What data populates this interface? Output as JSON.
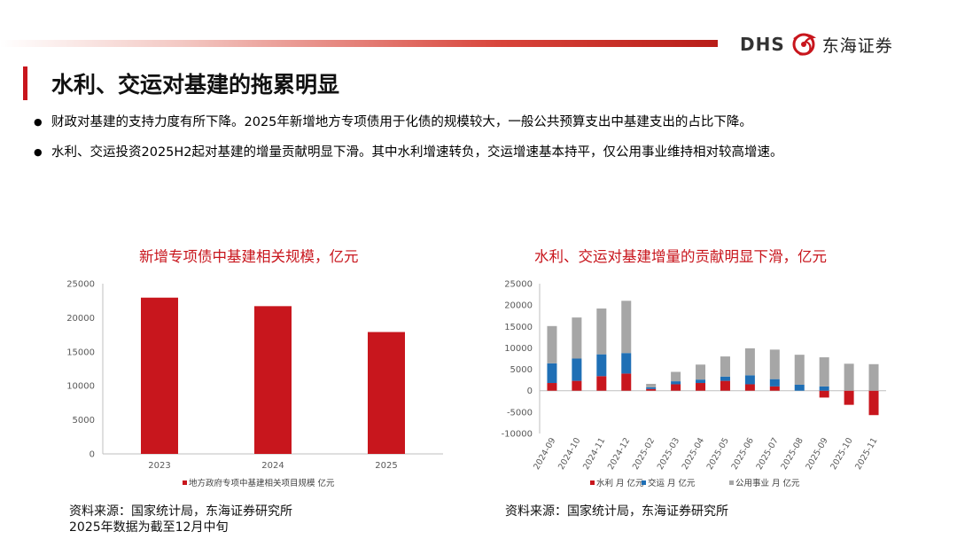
{
  "brand": {
    "logo_text": "DHS",
    "name_cn": "东海证券",
    "accent": "#c8161d"
  },
  "page_title": "水利、交运对基建的拖累明显",
  "bullets": [
    "财政对基建的支持力度有所下降。2025年新增地方专项债用于化债的规模较大，一般公共预算支出中基建支出的占比下降。",
    "水利、交运投资2025H2起对基建的增量贡献明显下滑。其中水利增速转负，交运增速基本持平，仅公用事业维持相对较高增速。"
  ],
  "chart_data": [
    {
      "type": "bar",
      "title": "新增专项债中基建相关规模，亿元",
      "categories": [
        "2023",
        "2024",
        "2025"
      ],
      "series": [
        {
          "name": "地方政府专项中基建相关项目规模 亿元",
          "color": "#c8161d",
          "values": [
            22950,
            21700,
            17900
          ]
        }
      ],
      "yticks": [
        0,
        5000,
        10000,
        15000,
        20000,
        25000
      ],
      "ylim": [
        0,
        25000
      ],
      "legend": "bottom"
    },
    {
      "type": "bar",
      "stacked": true,
      "title": "水利、交运对基建增量的贡献明显下滑，亿元",
      "categories": [
        "2024-09",
        "2024-10",
        "2024-11",
        "2024-12",
        "2025-02",
        "2025-03",
        "2025-04",
        "2025-05",
        "2025-06",
        "2025-07",
        "2025-08",
        "2025-09",
        "2025-10",
        "2025-11"
      ],
      "series": [
        {
          "name": "水利 月 亿元",
          "color": "#c8161d",
          "values": [
            1800,
            2300,
            3400,
            4000,
            400,
            1500,
            1800,
            2300,
            1500,
            1000,
            0,
            -1600,
            -3300,
            -5700
          ]
        },
        {
          "name": "交运 月 亿元",
          "color": "#1f6fb5",
          "values": [
            4600,
            5200,
            5100,
            4800,
            400,
            700,
            800,
            1000,
            2100,
            1700,
            1400,
            1000,
            0,
            0
          ]
        },
        {
          "name": "公用事业 月 亿元",
          "color": "#a6a6a6",
          "values": [
            8700,
            9600,
            10700,
            12200,
            800,
            2200,
            3500,
            4700,
            6300,
            6900,
            7000,
            6800,
            6300,
            6200
          ]
        }
      ],
      "yticks": [
        -10000,
        -5000,
        0,
        5000,
        10000,
        15000,
        20000,
        25000
      ],
      "ylim": [
        -10000,
        25000
      ],
      "legend": "bottom"
    }
  ],
  "sources": {
    "left": "资料来源：国家统计局，东海证券研究所",
    "left_note": "2025年数据为截至12月中旬",
    "right": "资料来源：国家统计局，东海证券研究所"
  }
}
